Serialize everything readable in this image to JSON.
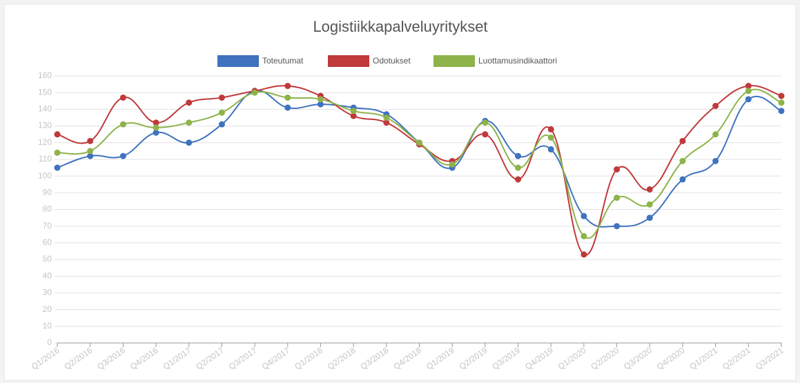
{
  "chart_data": {
    "type": "line",
    "title": "Logistiikkapalveluyritykset",
    "categories": [
      "Q1/2016",
      "Q2/2016",
      "Q3/2016",
      "Q4/2016",
      "Q1/2017",
      "Q2/2017",
      "Q3/2017",
      "Q4/2017",
      "Q1/2018",
      "Q2/2018",
      "Q3/2018",
      "Q4/2018",
      "Q1/2019",
      "Q2/2019",
      "Q3/2019",
      "Q4/2019",
      "Q1/2020",
      "Q2/2020",
      "Q3/2020",
      "Q4/2020",
      "Q1/2021",
      "Q2/2021",
      "Q3/2021"
    ],
    "series": [
      {
        "name": "Toteutumat",
        "color": "#3f72bf",
        "values": [
          105,
          112,
          112,
          126,
          120,
          131,
          151,
          141,
          143,
          141,
          137,
          120,
          105,
          133,
          112,
          116,
          76,
          70,
          75,
          98,
          109,
          146,
          139
        ]
      },
      {
        "name": "Odotukset",
        "color": "#c0393b",
        "values": [
          125,
          121,
          147,
          132,
          144,
          147,
          151,
          154,
          148,
          136,
          132,
          119,
          109,
          125,
          98,
          128,
          53,
          104,
          92,
          121,
          142,
          154,
          148
        ]
      },
      {
        "name": "Luottamusindikaattori",
        "color": "#8db34a",
        "values": [
          114,
          115,
          131,
          129,
          132,
          138,
          150,
          147,
          146,
          139,
          135,
          120,
          107,
          132,
          105,
          123,
          64,
          87,
          83,
          109,
          125,
          151,
          144
        ]
      }
    ],
    "ylim": [
      0,
      160
    ],
    "yticks": [
      0,
      10,
      20,
      30,
      40,
      50,
      60,
      70,
      80,
      90,
      100,
      110,
      120,
      130,
      140,
      150,
      160
    ],
    "grid": true
  }
}
